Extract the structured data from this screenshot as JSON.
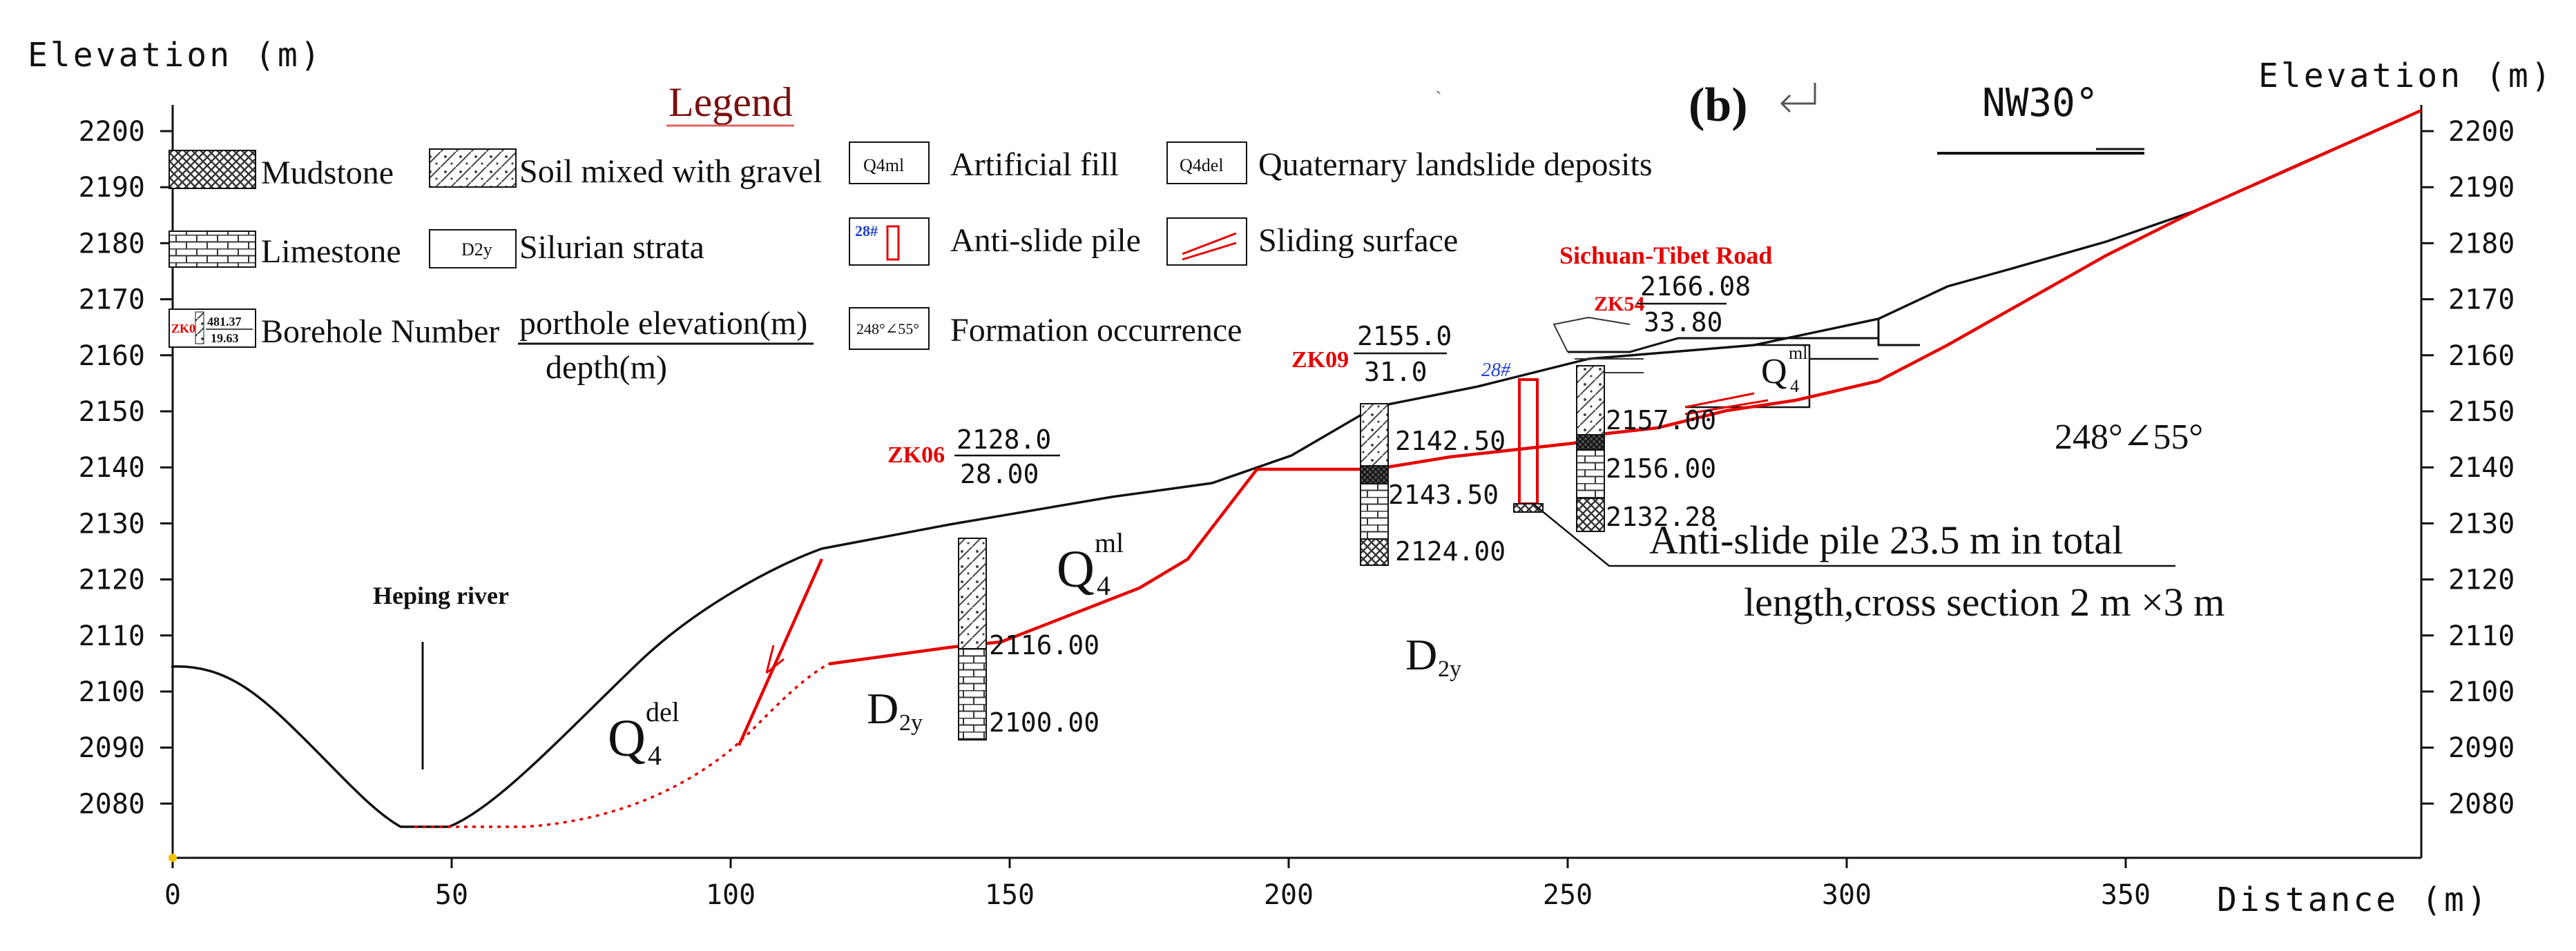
{
  "figure": {
    "label": "(b)",
    "direction": "NW30°",
    "y_axis_title_left": "Elevation (m)",
    "y_axis_title_right": "Elevation (m)",
    "x_axis_title": "Distance (m)",
    "y_ticks": [
      "2200",
      "2190",
      "2180",
      "2170",
      "2160",
      "2150",
      "2140",
      "2130",
      "2120",
      "2110",
      "2100",
      "2090",
      "2080"
    ],
    "x_ticks": [
      "0",
      "50",
      "100",
      "150",
      "200",
      "250",
      "300",
      "350"
    ]
  },
  "legend": {
    "title": "Legend",
    "mudstone": "Mudstone",
    "limestone": "Limestone",
    "borehole": "Borehole Number",
    "borehole_sample_id": "ZK0",
    "borehole_sample_top": "481.37",
    "borehole_sample_bottom": "19.63",
    "soil_gravel": "Soil mixed with gravel",
    "silurian": "Silurian strata",
    "silurian_symbol": "D2y",
    "porthole_elevation": "porthole elevation(m)",
    "depth": "depth(m)",
    "artificial_fill_symbol": "Q4ml",
    "artificial_fill": "Artificial fill",
    "anti_slide_pile_symbol": "28#",
    "anti_slide_pile": "Anti-slide pile",
    "formation_symbol": "248°∠55°",
    "formation": "Formation occurrence",
    "landslide_symbol": "Q4del",
    "landslide": "Quaternary landslide deposits",
    "sliding": "Sliding surface"
  },
  "annotations": {
    "river": "Heping river",
    "road": "Sichuan-Tibet Road",
    "occurrence": "248°∠55°",
    "pile_note_1": "Anti-slide pile 23.5 m in total",
    "pile_note_2": "length,cross section 2 m ×3 m",
    "pile_number": "28#",
    "q_del_main": "Q",
    "q_del_sup": "del",
    "q_del_sub": "4",
    "q_ml_main": "Q",
    "q_ml_sup": "ml",
    "q_ml_sub": "4",
    "q_ml_right_main": "Q",
    "q_ml_right_sup": "ml",
    "q_ml_right_sub": "4",
    "d2y_left_main": "D",
    "d2y_left_sub": "2y",
    "d2y_mid_main": "D",
    "d2y_mid_sub": "2y"
  },
  "boreholes": {
    "zk06": {
      "id": "ZK06",
      "elevation": "2128.0",
      "depth": "28.00",
      "layers": [
        "2116.00",
        "2100.00"
      ]
    },
    "zk09": {
      "id": "ZK09",
      "elevation": "2155.0",
      "depth": "31.0",
      "layers": [
        "2142.50",
        "2143.50",
        "2124.00"
      ]
    },
    "zk54": {
      "id": "ZK54",
      "elevation": "2166.08",
      "depth": "33.80",
      "layers": [
        "2157.00",
        "2156.00",
        "2132.28"
      ]
    }
  },
  "colors": {
    "sliding_surface": "#e60000",
    "labels_red": "#e60000",
    "pile_blue": "#1f3fd6",
    "ground": "#111111"
  }
}
